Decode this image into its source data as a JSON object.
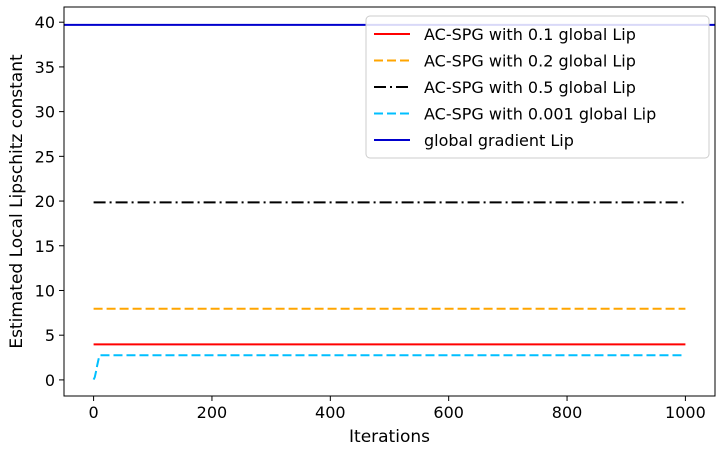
{
  "chart_data": {
    "type": "line",
    "xlabel": "Iterations",
    "ylabel": "Estimated Local Lipschitz constant",
    "xlim": [
      -50,
      1050
    ],
    "ylim": [
      -1.8,
      41.7
    ],
    "xticks": [
      0,
      200,
      400,
      600,
      800,
      1000
    ],
    "yticks": [
      0,
      5,
      10,
      15,
      20,
      25,
      30,
      35,
      40
    ],
    "grid": false,
    "legend_position": "top-right",
    "series": [
      {
        "name": "AC-SPG with 0.1 global Lip",
        "color": "#ff0000",
        "dash": "solid",
        "x": [
          0,
          1000
        ],
        "y": [
          3.97,
          3.97
        ]
      },
      {
        "name": "AC-SPG with 0.2 global Lip",
        "color": "#ffa500",
        "dash": "dashed",
        "x": [
          0,
          1000
        ],
        "y": [
          7.95,
          7.95
        ]
      },
      {
        "name": "AC-SPG with 0.5 global Lip",
        "color": "#000000",
        "dash": "dashdot",
        "x": [
          0,
          1000
        ],
        "y": [
          19.85,
          19.85
        ]
      },
      {
        "name": "AC-SPG with 0.001 global Lip",
        "color": "#00bfff",
        "dash": "dashed",
        "x": [
          0,
          2,
          4,
          6,
          8,
          10,
          1000
        ],
        "y": [
          0.04,
          0.3,
          0.9,
          1.6,
          2.2,
          2.75,
          2.75
        ]
      },
      {
        "name": "global gradient Lip",
        "color": "#0000cd",
        "dash": "solid",
        "x": [
          -50,
          1050
        ],
        "y": [
          39.7,
          39.7
        ]
      }
    ]
  }
}
